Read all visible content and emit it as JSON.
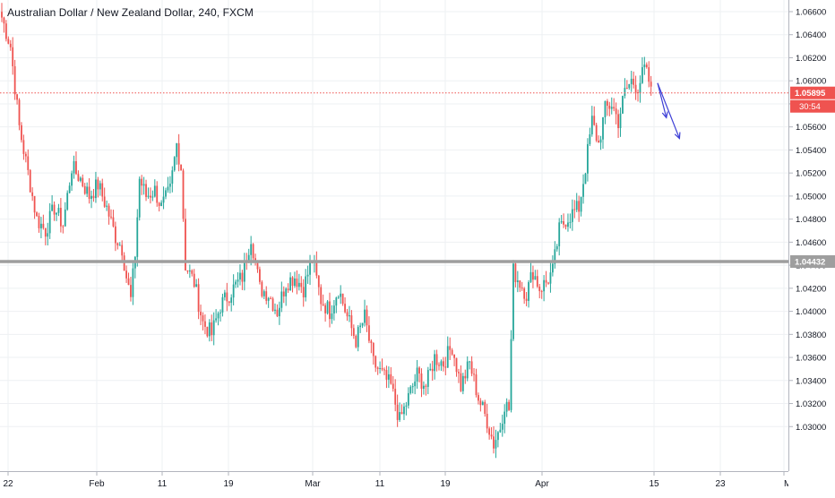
{
  "header": {
    "title": "Australian Dollar / New Zealand Dollar, 240, FXCM"
  },
  "colors": {
    "up": "#26a69a",
    "down": "#ef5350",
    "wick": "#555555",
    "grid": "#eef0f3",
    "support_line": "#9e9e9e",
    "last_price_line": "#ef5350",
    "arrow": "#3d3fd6",
    "axis_text": "#131722"
  },
  "chart_data": {
    "type": "candlestick",
    "symbol": "AUDNZD",
    "timeframe": "240",
    "source": "FXCM",
    "y_range": [
      1.028,
      1.066
    ],
    "y_ticks": [
      "1.06600",
      "1.06400",
      "1.06200",
      "1.06000",
      "1.05800",
      "1.05600",
      "1.05400",
      "1.05200",
      "1.05000",
      "1.04800",
      "1.04600",
      "1.04400",
      "1.04200",
      "1.04000",
      "1.03800",
      "1.03600",
      "1.03400",
      "1.03200",
      "1.03000"
    ],
    "x_ticks": [
      "22",
      "Feb",
      "11",
      "19",
      "Mar",
      "11",
      "19",
      "Apr",
      "15",
      "23",
      "Ma"
    ],
    "horizontal_line": {
      "price": 1.04432,
      "label": "1.04432"
    },
    "last_price": {
      "price": 1.05895,
      "label": "1.05895",
      "countdown": "30:54"
    },
    "anchors": [
      {
        "i": 0,
        "p": 1.0655
      },
      {
        "i": 4,
        "p": 1.063
      },
      {
        "i": 8,
        "p": 1.056
      },
      {
        "i": 12,
        "p": 1.052
      },
      {
        "i": 16,
        "p": 1.048
      },
      {
        "i": 20,
        "p": 1.047
      },
      {
        "i": 24,
        "p": 1.049
      },
      {
        "i": 28,
        "p": 1.0475
      },
      {
        "i": 32,
        "p": 1.0525
      },
      {
        "i": 36,
        "p": 1.0515
      },
      {
        "i": 40,
        "p": 1.05
      },
      {
        "i": 44,
        "p": 1.051
      },
      {
        "i": 48,
        "p": 1.049
      },
      {
        "i": 52,
        "p": 1.0465
      },
      {
        "i": 55,
        "p": 1.0455
      },
      {
        "i": 57,
        "p": 1.043
      },
      {
        "i": 59,
        "p": 1.041
      },
      {
        "i": 61,
        "p": 1.045
      },
      {
        "i": 63,
        "p": 1.0515
      },
      {
        "i": 66,
        "p": 1.05
      },
      {
        "i": 70,
        "p": 1.0505
      },
      {
        "i": 73,
        "p": 1.049
      },
      {
        "i": 77,
        "p": 1.0505
      },
      {
        "i": 80,
        "p": 1.0545
      },
      {
        "i": 82,
        "p": 1.0525
      },
      {
        "i": 84,
        "p": 1.044
      },
      {
        "i": 88,
        "p": 1.0425
      },
      {
        "i": 92,
        "p": 1.039
      },
      {
        "i": 96,
        "p": 1.038
      },
      {
        "i": 100,
        "p": 1.0405
      },
      {
        "i": 106,
        "p": 1.042
      },
      {
        "i": 110,
        "p": 1.043
      },
      {
        "i": 114,
        "p": 1.0465
      },
      {
        "i": 118,
        "p": 1.042
      },
      {
        "i": 122,
        "p": 1.0415
      },
      {
        "i": 126,
        "p": 1.04
      },
      {
        "i": 130,
        "p": 1.0425
      },
      {
        "i": 134,
        "p": 1.043
      },
      {
        "i": 138,
        "p": 1.042
      },
      {
        "i": 142,
        "p": 1.0445
      },
      {
        "i": 146,
        "p": 1.041
      },
      {
        "i": 150,
        "p": 1.04
      },
      {
        "i": 154,
        "p": 1.042
      },
      {
        "i": 158,
        "p": 1.0395
      },
      {
        "i": 162,
        "p": 1.0375
      },
      {
        "i": 166,
        "p": 1.0395
      },
      {
        "i": 170,
        "p": 1.0355
      },
      {
        "i": 174,
        "p": 1.0345
      },
      {
        "i": 178,
        "p": 1.0335
      },
      {
        "i": 182,
        "p": 1.0305
      },
      {
        "i": 186,
        "p": 1.0325
      },
      {
        "i": 190,
        "p": 1.0345
      },
      {
        "i": 194,
        "p": 1.0335
      },
      {
        "i": 198,
        "p": 1.036
      },
      {
        "i": 202,
        "p": 1.0355
      },
      {
        "i": 206,
        "p": 1.037
      },
      {
        "i": 210,
        "p": 1.0335
      },
      {
        "i": 214,
        "p": 1.0355
      },
      {
        "i": 218,
        "p": 1.0325
      },
      {
        "i": 222,
        "p": 1.0305
      },
      {
        "i": 225,
        "p": 1.0285
      },
      {
        "i": 228,
        "p": 1.03
      },
      {
        "i": 230,
        "p": 1.032
      },
      {
        "i": 232,
        "p": 1.0315
      },
      {
        "i": 234,
        "p": 1.0435
      },
      {
        "i": 237,
        "p": 1.0425
      },
      {
        "i": 240,
        "p": 1.0415
      },
      {
        "i": 243,
        "p": 1.0435
      },
      {
        "i": 246,
        "p": 1.042
      },
      {
        "i": 249,
        "p": 1.0425
      },
      {
        "i": 252,
        "p": 1.0435
      },
      {
        "i": 255,
        "p": 1.047
      },
      {
        "i": 258,
        "p": 1.048
      },
      {
        "i": 261,
        "p": 1.0485
      },
      {
        "i": 264,
        "p": 1.049
      },
      {
        "i": 267,
        "p": 1.0525
      },
      {
        "i": 270,
        "p": 1.0565
      },
      {
        "i": 273,
        "p": 1.0545
      },
      {
        "i": 276,
        "p": 1.0575
      },
      {
        "i": 279,
        "p": 1.058
      },
      {
        "i": 282,
        "p": 1.0565
      },
      {
        "i": 285,
        "p": 1.059
      },
      {
        "i": 288,
        "p": 1.06
      },
      {
        "i": 291,
        "p": 1.0595
      },
      {
        "i": 294,
        "p": 1.061
      },
      {
        "i": 297,
        "p": 1.0595
      }
    ],
    "arrows": [
      {
        "from_i": 300,
        "from_p": 1.0598,
        "to_i": 304,
        "to_p": 1.0568
      },
      {
        "from_i": 300,
        "from_p": 1.0598,
        "to_i": 310,
        "to_p": 1.055
      }
    ]
  }
}
